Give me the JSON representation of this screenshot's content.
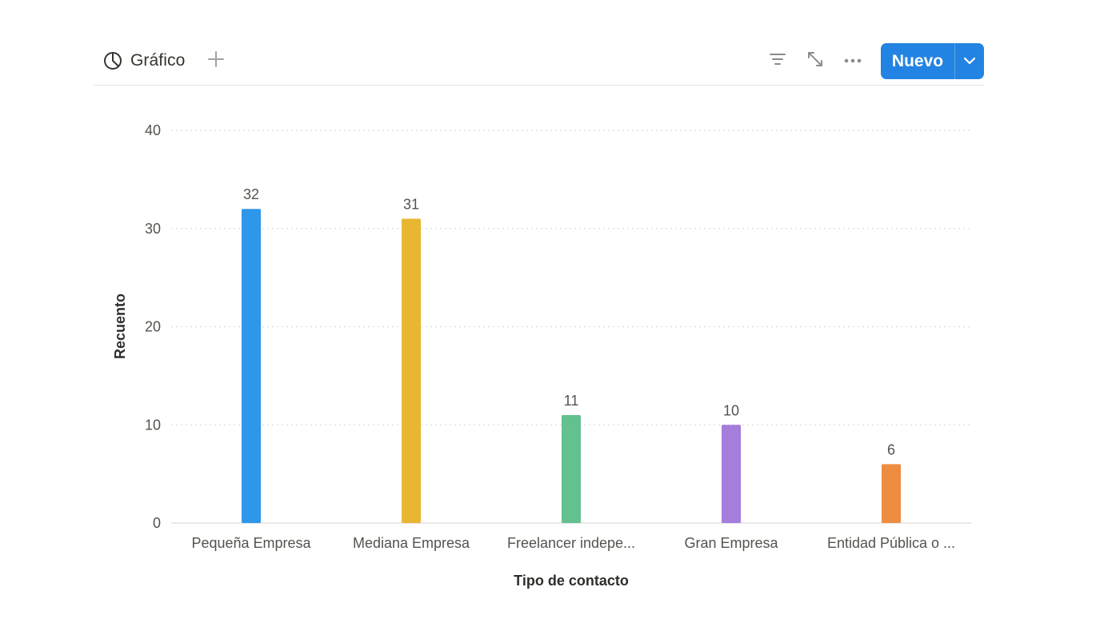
{
  "toolbar": {
    "view_title": "Gráfico",
    "new_label": "Nuevo",
    "icons": {
      "view": "pie-chart-icon",
      "add": "plus-icon",
      "filter": "filter-icon",
      "expand": "expand-icon",
      "more": "more-horizontal-icon",
      "dropdown": "chevron-down-icon"
    },
    "accent_color": "#2383e2"
  },
  "chart_data": {
    "type": "bar",
    "categories": [
      "Pequeña Empresa",
      "Mediana Empresa",
      "Freelancer indepe...",
      "Gran Empresa",
      "Entidad Pública o ..."
    ],
    "values": [
      32,
      31,
      11,
      10,
      6
    ],
    "colors": [
      "#2f97ea",
      "#e8b631",
      "#63c08f",
      "#a57ddb",
      "#ee8d42"
    ],
    "xlabel": "Tipo de contacto",
    "ylabel": "Recuento",
    "ylim": [
      0,
      40
    ],
    "yticks": [
      0,
      10,
      20,
      30,
      40
    ],
    "grid": true,
    "data_labels": true
  }
}
